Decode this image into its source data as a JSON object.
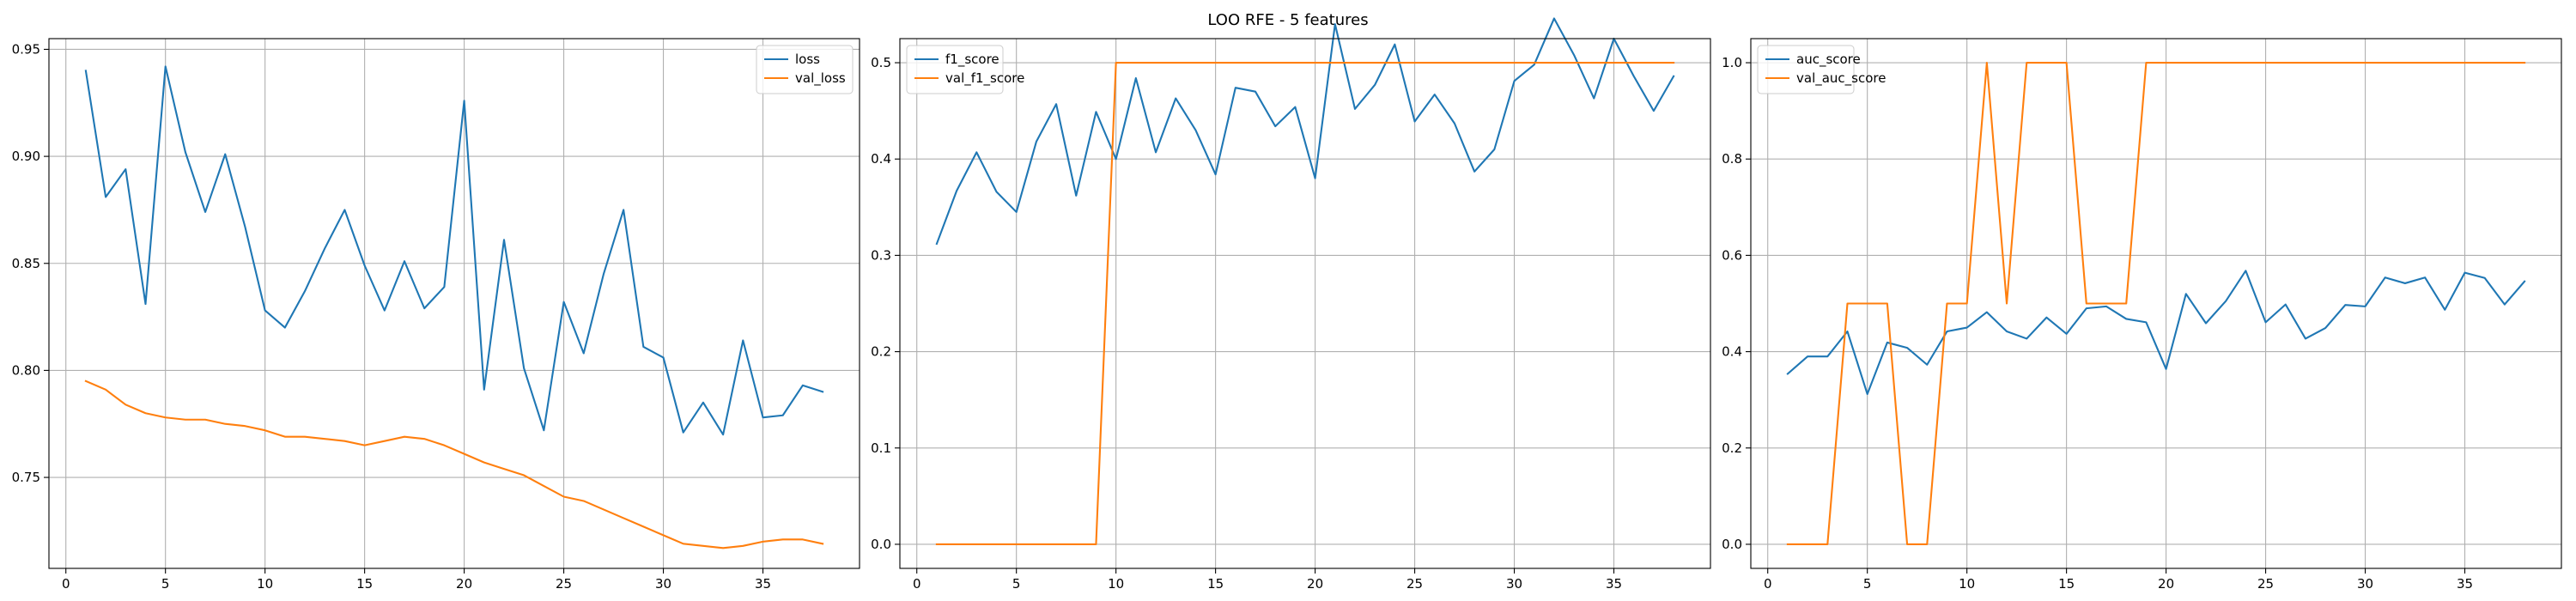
{
  "figure": {
    "title": "LOO RFE - 5 features"
  },
  "chart_data": [
    {
      "type": "line",
      "legend_position": "top-right",
      "grid": true,
      "xlim": [
        -0.85,
        39.85
      ],
      "ylim": [
        0.7075,
        0.955
      ],
      "xticks": [
        0,
        5,
        10,
        15,
        20,
        25,
        30,
        35
      ],
      "yticks": [
        0.75,
        0.8,
        0.85,
        0.9,
        0.95
      ],
      "ytick_labels": [
        "0.75",
        "0.80",
        "0.85",
        "0.90",
        "0.95"
      ],
      "x": [
        1,
        2,
        3,
        4,
        5,
        6,
        7,
        8,
        9,
        10,
        11,
        12,
        13,
        14,
        15,
        16,
        17,
        18,
        19,
        20,
        21,
        22,
        23,
        24,
        25,
        26,
        27,
        28,
        29,
        30,
        31,
        32,
        33,
        34,
        35,
        36,
        37,
        38
      ],
      "series": [
        {
          "name": "loss",
          "color": "#1f77b4",
          "values": [
            0.94,
            0.881,
            0.894,
            0.831,
            0.942,
            0.902,
            0.874,
            0.901,
            0.867,
            0.828,
            0.82,
            0.837,
            0.857,
            0.875,
            0.849,
            0.828,
            0.851,
            0.829,
            0.839,
            0.926,
            0.791,
            0.861,
            0.801,
            0.772,
            0.832,
            0.808,
            0.845,
            0.875,
            0.811,
            0.806,
            0.771,
            0.785,
            0.77,
            0.814,
            0.778,
            0.779,
            0.793,
            0.79
          ]
        },
        {
          "name": "val_loss",
          "color": "#ff7f0e",
          "values": [
            0.795,
            0.791,
            0.784,
            0.78,
            0.778,
            0.777,
            0.777,
            0.775,
            0.774,
            0.772,
            0.769,
            0.769,
            0.768,
            0.767,
            0.765,
            0.767,
            0.769,
            0.768,
            0.765,
            0.761,
            0.757,
            0.754,
            0.751,
            0.746,
            0.741,
            0.739,
            0.735,
            0.731,
            0.727,
            0.723,
            0.719,
            0.718,
            0.717,
            0.718,
            0.72,
            0.721,
            0.721,
            0.719
          ]
        }
      ]
    },
    {
      "type": "line",
      "legend_position": "top-left",
      "grid": true,
      "xlim": [
        -0.85,
        39.85
      ],
      "ylim": [
        -0.025,
        0.525
      ],
      "xticks": [
        0,
        5,
        10,
        15,
        20,
        25,
        30,
        35
      ],
      "yticks": [
        0.0,
        0.1,
        0.2,
        0.3,
        0.4,
        0.5
      ],
      "ytick_labels": [
        "0.0",
        "0.1",
        "0.2",
        "0.3",
        "0.4",
        "0.5"
      ],
      "x": [
        1,
        2,
        3,
        4,
        5,
        6,
        7,
        8,
        9,
        10,
        11,
        12,
        13,
        14,
        15,
        16,
        17,
        18,
        19,
        20,
        21,
        22,
        23,
        24,
        25,
        26,
        27,
        28,
        29,
        30,
        31,
        32,
        33,
        34,
        35,
        36,
        37,
        38
      ],
      "series": [
        {
          "name": "f1_score",
          "color": "#1f77b4",
          "values": [
            0.312,
            0.367,
            0.407,
            0.366,
            0.345,
            0.418,
            0.457,
            0.362,
            0.449,
            0.4,
            0.484,
            0.407,
            0.463,
            0.43,
            0.384,
            0.474,
            0.47,
            0.434,
            0.454,
            0.38,
            0.54,
            0.452,
            0.477,
            0.519,
            0.439,
            0.467,
            0.437,
            0.387,
            0.41,
            0.481,
            0.498,
            0.546,
            0.508,
            0.463,
            0.525,
            0.486,
            0.45,
            0.486
          ]
        },
        {
          "name": "val_f1_score",
          "color": "#ff7f0e",
          "values": [
            0,
            0,
            0,
            0,
            0,
            0,
            0,
            0,
            0,
            0.5,
            0.5,
            0.5,
            0.5,
            0.5,
            0.5,
            0.5,
            0.5,
            0.5,
            0.5,
            0.5,
            0.5,
            0.5,
            0.5,
            0.5,
            0.5,
            0.5,
            0.5,
            0.5,
            0.5,
            0.5,
            0.5,
            0.5,
            0.5,
            0.5,
            0.5,
            0.5,
            0.5,
            0.5
          ]
        }
      ]
    },
    {
      "type": "line",
      "legend_position": "top-left",
      "grid": true,
      "xlim": [
        -0.85,
        39.85
      ],
      "ylim": [
        -0.05,
        1.05
      ],
      "xticks": [
        0,
        5,
        10,
        15,
        20,
        25,
        30,
        35
      ],
      "yticks": [
        0.0,
        0.2,
        0.4,
        0.6,
        0.8,
        1.0
      ],
      "ytick_labels": [
        "0.0",
        "0.2",
        "0.4",
        "0.6",
        "0.8",
        "1.0"
      ],
      "x": [
        1,
        2,
        3,
        4,
        5,
        6,
        7,
        8,
        9,
        10,
        11,
        12,
        13,
        14,
        15,
        16,
        17,
        18,
        19,
        20,
        21,
        22,
        23,
        24,
        25,
        26,
        27,
        28,
        29,
        30,
        31,
        32,
        33,
        34,
        35,
        36,
        37,
        38
      ],
      "series": [
        {
          "name": "auc_score",
          "color": "#1f77b4",
          "values": [
            0.354,
            0.39,
            0.39,
            0.442,
            0.312,
            0.419,
            0.408,
            0.373,
            0.442,
            0.45,
            0.482,
            0.442,
            0.427,
            0.471,
            0.437,
            0.49,
            0.494,
            0.468,
            0.461,
            0.364,
            0.52,
            0.459,
            0.505,
            0.568,
            0.461,
            0.498,
            0.427,
            0.449,
            0.497,
            0.494,
            0.554,
            0.542,
            0.554,
            0.487,
            0.564,
            0.553,
            0.498,
            0.546
          ]
        },
        {
          "name": "val_auc_score",
          "color": "#ff7f0e",
          "values": [
            0,
            0,
            0,
            0.5,
            0.5,
            0.5,
            0,
            0,
            0.5,
            0.5,
            1,
            0.5,
            1,
            1,
            1,
            0.5,
            0.5,
            0.5,
            1,
            1,
            1,
            1,
            1,
            1,
            1,
            1,
            1,
            1,
            1,
            1,
            1,
            1,
            1,
            1,
            1,
            1,
            1,
            1
          ]
        }
      ]
    }
  ]
}
